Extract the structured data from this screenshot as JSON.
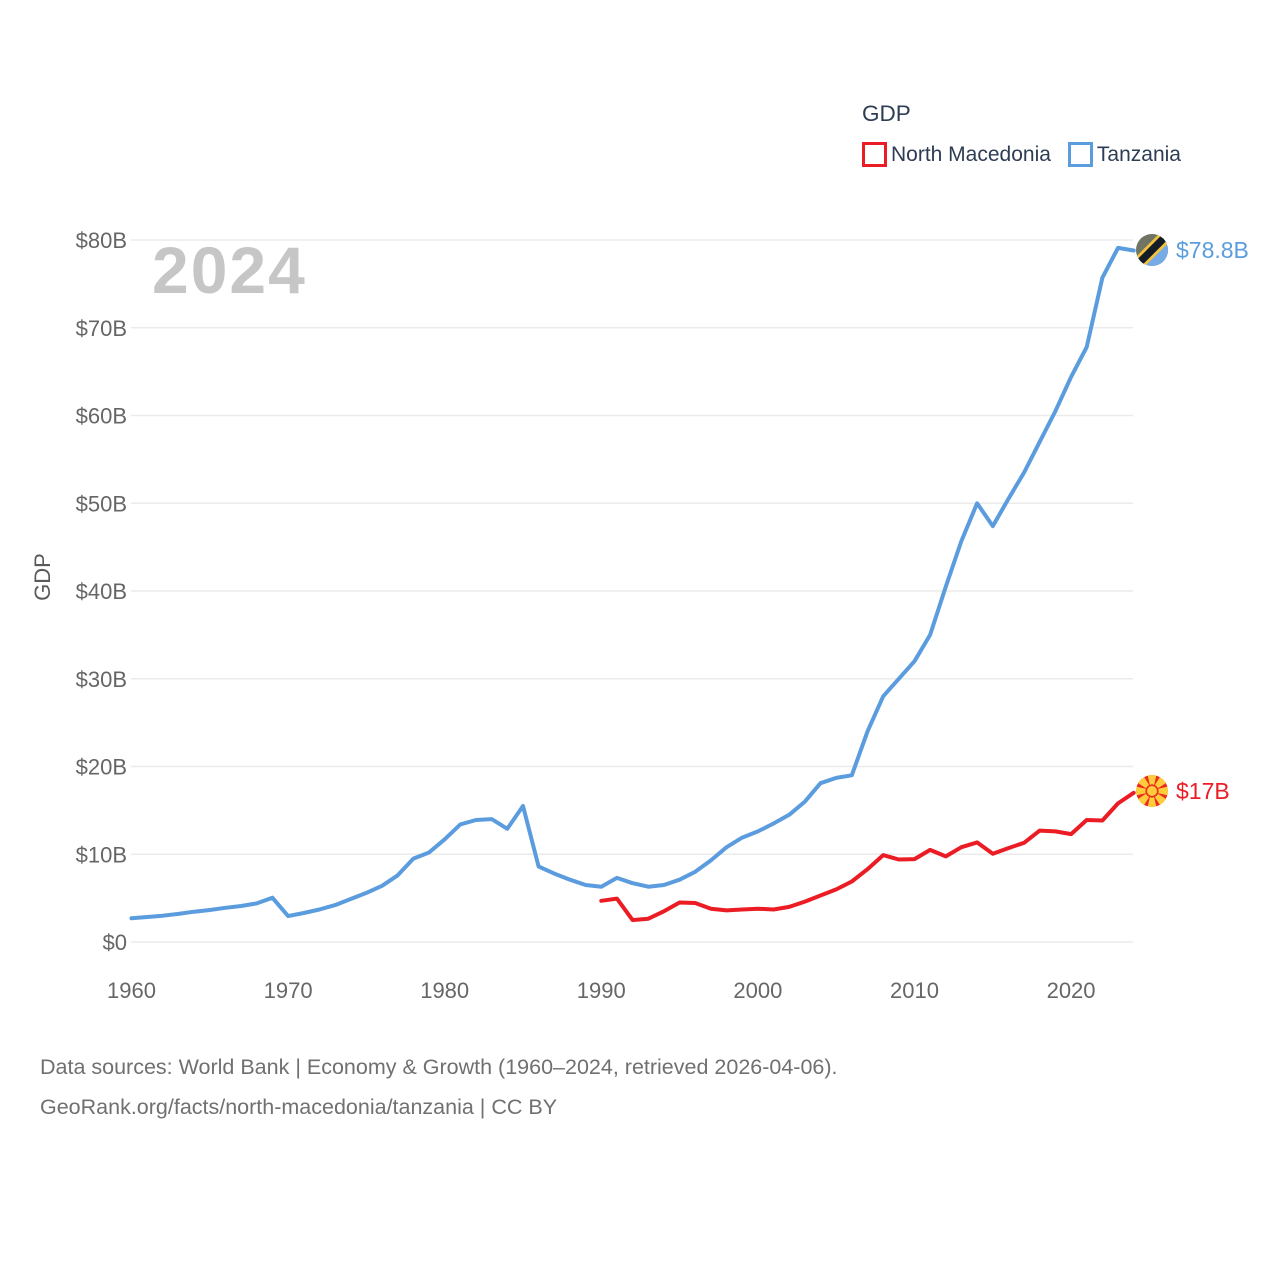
{
  "watermark": "2024",
  "y_axis": {
    "title": "GDP"
  },
  "legend": {
    "title": "GDP",
    "items": [
      {
        "label": "North Macedonia"
      },
      {
        "label": "Tanzania"
      }
    ]
  },
  "footer": {
    "line1": "Data sources: World Bank | Economy & Growth (1960–2024, retrieved 2026-04-06).",
    "line2": "GeoRank.org/facts/north-macedonia/tanzania | CC BY"
  },
  "chart_data": {
    "type": "line",
    "title": "GDP",
    "ylabel": "GDP",
    "x_range": [
      1960,
      2024
    ],
    "y_range_billions": [
      0,
      80
    ],
    "grid": "horizontal",
    "legend_position": "top-right",
    "x_ticks": [
      1960,
      1970,
      1980,
      1990,
      2000,
      2010,
      2020
    ],
    "y_ticks": [
      {
        "value": 0,
        "label": "$0"
      },
      {
        "value": 10,
        "label": "$10B"
      },
      {
        "value": 20,
        "label": "$20B"
      },
      {
        "value": 30,
        "label": "$30B"
      },
      {
        "value": 40,
        "label": "$40B"
      },
      {
        "value": 50,
        "label": "$50B"
      },
      {
        "value": 60,
        "label": "$60B"
      },
      {
        "value": 70,
        "label": "$70B"
      },
      {
        "value": 80,
        "label": "$80B"
      }
    ],
    "series": [
      {
        "name": "North Macedonia",
        "color": "#EC1C24",
        "flag_icon": "north-macedonia-flag-icon",
        "start_year": 1990,
        "end_label": "$17B",
        "end_value_billions": 17.0,
        "values_billions": [
          4.7,
          4.95,
          2.5,
          2.65,
          3.5,
          4.5,
          4.45,
          3.8,
          3.6,
          3.7,
          3.8,
          3.7,
          4.0,
          4.6,
          5.3,
          6.0,
          6.9,
          8.3,
          9.9,
          9.4,
          9.45,
          10.5,
          9.75,
          10.8,
          11.35,
          10.05,
          10.7,
          11.3,
          12.7,
          12.6,
          12.3,
          13.9,
          13.85,
          15.8,
          17.0
        ]
      },
      {
        "name": "Tanzania",
        "color": "#5B9CDE",
        "flag_icon": "tanzania-flag-icon",
        "start_year": 1960,
        "end_label": "$78.8B",
        "end_value_billions": 78.8,
        "values_billions": [
          2.7,
          2.85,
          3.0,
          3.2,
          3.45,
          3.65,
          3.9,
          4.1,
          4.4,
          5.05,
          2.95,
          3.3,
          3.7,
          4.2,
          4.9,
          5.6,
          6.4,
          7.6,
          9.5,
          10.2,
          11.7,
          13.4,
          13.9,
          14.0,
          12.9,
          15.5,
          8.6,
          7.8,
          7.1,
          6.5,
          6.3,
          7.3,
          6.7,
          6.3,
          6.5,
          7.1,
          8.0,
          9.3,
          10.8,
          11.9,
          12.6,
          13.5,
          14.5,
          16.0,
          18.1,
          18.7,
          19.0,
          24.0,
          28.0,
          30.0,
          32.0,
          35.0,
          40.5,
          45.7,
          50.0,
          47.4,
          50.5,
          53.5,
          57.0,
          60.5,
          64.4,
          67.8,
          75.7,
          79.1,
          78.8
        ]
      }
    ]
  }
}
